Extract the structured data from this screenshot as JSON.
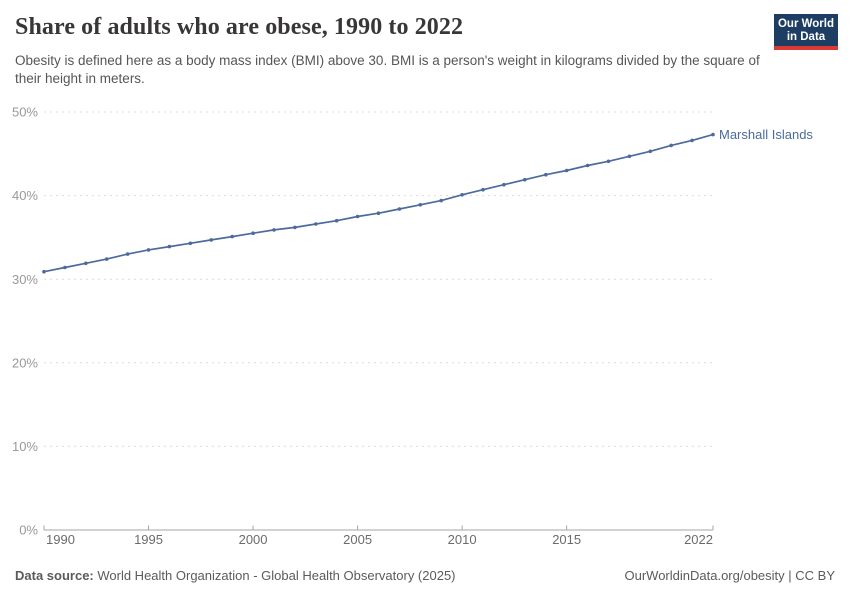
{
  "header": {
    "title": "Share of adults who are obese, 1990 to 2022",
    "subtitle": "Obesity is defined here as a body mass index (BMI) above 30. BMI is a person's weight in kilograms divided by the square of their height in meters."
  },
  "logo": {
    "line1": "Our World",
    "line2": "in Data",
    "bg_color": "#1d3d63",
    "accent_color": "#d93a34"
  },
  "footer": {
    "datasource_label": "Data source:",
    "datasource_text": " World Health Organization - Global Health Observatory (2025)",
    "link_text": "OurWorldinData.org/obesity | CC BY"
  },
  "chart_data": {
    "type": "line",
    "title": "Share of adults who are obese, 1990 to 2022",
    "xlabel": "",
    "ylabel": "",
    "xlim": [
      1990,
      2022
    ],
    "ylim": [
      0,
      50
    ],
    "grid": "horizontal-dashed",
    "legend_position": "end-of-line-label",
    "x_ticks": [
      1990,
      1995,
      2000,
      2005,
      2010,
      2015,
      2022
    ],
    "y_ticks": [
      0,
      10,
      20,
      30,
      40,
      50
    ],
    "y_tick_suffix": "%",
    "grid_color": "#dcdcdc",
    "axis_color": "#a5a5a5",
    "y_tick_label_color": "#999999",
    "x_tick_label_color": "#6b6b6b",
    "series": [
      {
        "name": "Marshall Islands",
        "color": "#4c6a9c",
        "x": [
          1990,
          1991,
          1992,
          1993,
          1994,
          1995,
          1996,
          1997,
          1998,
          1999,
          2000,
          2001,
          2002,
          2003,
          2004,
          2005,
          2006,
          2007,
          2008,
          2009,
          2010,
          2011,
          2012,
          2013,
          2014,
          2015,
          2016,
          2017,
          2018,
          2019,
          2020,
          2021,
          2022
        ],
        "values": [
          30.9,
          31.4,
          31.9,
          32.4,
          33.0,
          33.5,
          33.9,
          34.3,
          34.7,
          35.1,
          35.5,
          35.9,
          36.2,
          36.6,
          37.0,
          37.5,
          37.9,
          38.4,
          38.9,
          39.4,
          40.1,
          40.7,
          41.3,
          41.9,
          42.5,
          43.0,
          43.6,
          44.1,
          44.7,
          45.3,
          46.0,
          46.6,
          47.3
        ]
      }
    ]
  }
}
